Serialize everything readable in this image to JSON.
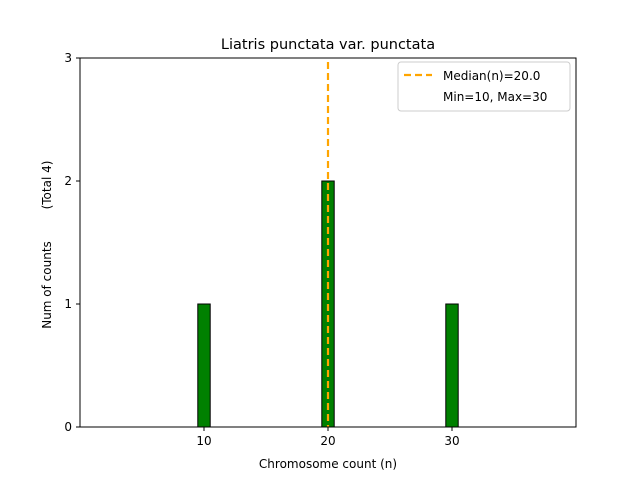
{
  "chart_data": {
    "type": "bar",
    "title": "Liatris punctata var. punctata",
    "xlabel": "Chromosome count (n)",
    "ylabel": "Num of counts",
    "ylabel_extra": "(Total 4)",
    "xlim": [
      0,
      40
    ],
    "ylim": [
      0,
      3
    ],
    "xticks": [
      10,
      20,
      30
    ],
    "yticks": [
      0,
      1,
      2,
      3
    ],
    "bars": [
      {
        "x": 10,
        "value": 1
      },
      {
        "x": 20,
        "value": 2
      },
      {
        "x": 30,
        "value": 1
      }
    ],
    "bar_width": 1,
    "baseline_end": 33.5,
    "bar_color": "#008000",
    "median": 20.0,
    "median_color": "#FFA500",
    "legend": {
      "placement": "top-right",
      "entries": [
        "Median(n)=20.0",
        "Min=10, Max=30"
      ]
    }
  }
}
